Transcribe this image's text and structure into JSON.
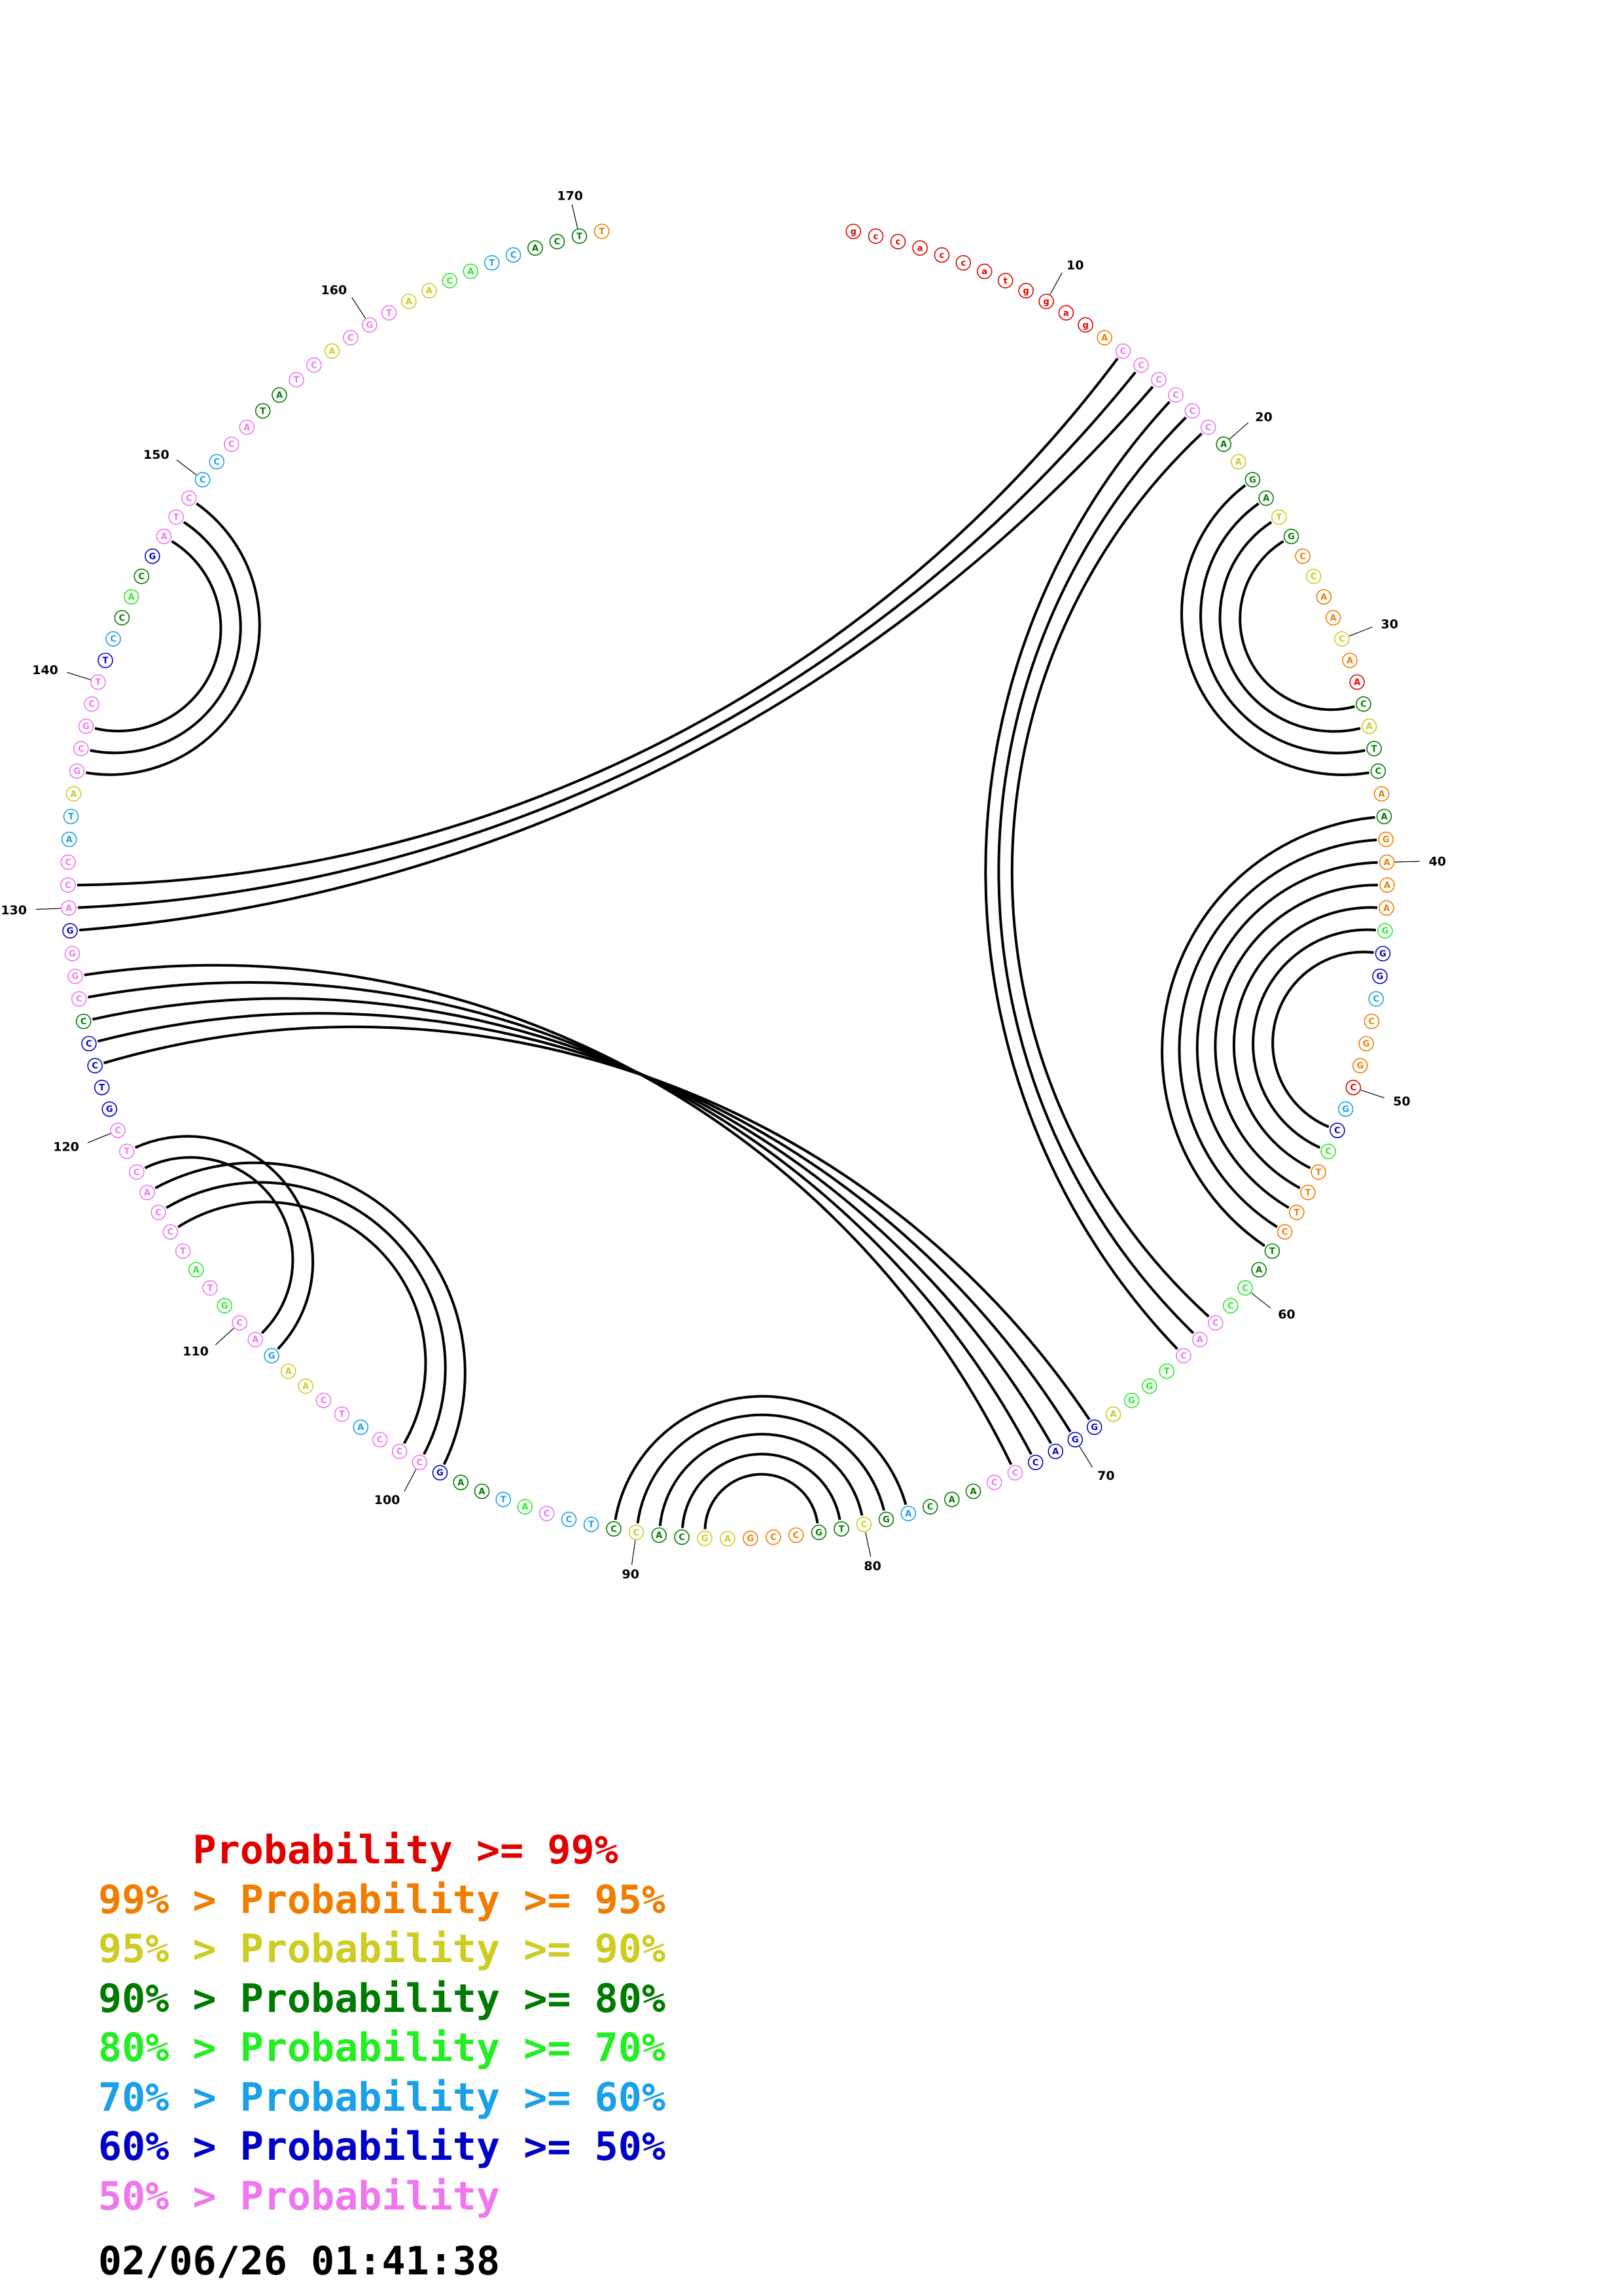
{
  "diagram": {
    "sequence": [
      {
        "b": "g",
        "c": "red"
      },
      {
        "b": "c",
        "c": "red"
      },
      {
        "b": "c",
        "c": "red"
      },
      {
        "b": "a",
        "c": "red"
      },
      {
        "b": "c",
        "c": "red"
      },
      {
        "b": "c",
        "c": "red"
      },
      {
        "b": "a",
        "c": "red"
      },
      {
        "b": "t",
        "c": "red"
      },
      {
        "b": "g",
        "c": "red"
      },
      {
        "b": "g",
        "c": "red"
      },
      {
        "b": "a",
        "c": "red"
      },
      {
        "b": "g",
        "c": "red"
      },
      {
        "b": "A",
        "c": "orange"
      },
      {
        "b": "C",
        "c": "pink"
      },
      {
        "b": "C",
        "c": "pink"
      },
      {
        "b": "C",
        "c": "pink"
      },
      {
        "b": "C",
        "c": "pink"
      },
      {
        "b": "C",
        "c": "pink"
      },
      {
        "b": "C",
        "c": "pink"
      },
      {
        "b": "A",
        "c": "darkgreen"
      },
      {
        "b": "A",
        "c": "yellow"
      },
      {
        "b": "G",
        "c": "darkgreen"
      },
      {
        "b": "A",
        "c": "darkgreen"
      },
      {
        "b": "T",
        "c": "yellow"
      },
      {
        "b": "G",
        "c": "darkgreen"
      },
      {
        "b": "C",
        "c": "orange"
      },
      {
        "b": "C",
        "c": "yellow"
      },
      {
        "b": "A",
        "c": "orange"
      },
      {
        "b": "A",
        "c": "orange"
      },
      {
        "b": "C",
        "c": "yellow"
      },
      {
        "b": "A",
        "c": "orange"
      },
      {
        "b": "A",
        "c": "red"
      },
      {
        "b": "C",
        "c": "darkgreen"
      },
      {
        "b": "A",
        "c": "yellow"
      },
      {
        "b": "T",
        "c": "darkgreen"
      },
      {
        "b": "C",
        "c": "darkgreen"
      },
      {
        "b": "A",
        "c": "orange"
      },
      {
        "b": "A",
        "c": "darkgreen"
      },
      {
        "b": "G",
        "c": "orange"
      },
      {
        "b": "A",
        "c": "orange"
      },
      {
        "b": "A",
        "c": "orange"
      },
      {
        "b": "A",
        "c": "orange"
      },
      {
        "b": "G",
        "c": "green"
      },
      {
        "b": "G",
        "c": "blue"
      },
      {
        "b": "G",
        "c": "blue"
      },
      {
        "b": "C",
        "c": "cyan"
      },
      {
        "b": "C",
        "c": "orange"
      },
      {
        "b": "G",
        "c": "orange"
      },
      {
        "b": "G",
        "c": "orange"
      },
      {
        "b": "C",
        "c": "red"
      },
      {
        "b": "G",
        "c": "cyan"
      },
      {
        "b": "C",
        "c": "blue"
      },
      {
        "b": "C",
        "c": "green"
      },
      {
        "b": "T",
        "c": "orange"
      },
      {
        "b": "T",
        "c": "orange"
      },
      {
        "b": "T",
        "c": "orange"
      },
      {
        "b": "C",
        "c": "orange"
      },
      {
        "b": "T",
        "c": "darkgreen"
      },
      {
        "b": "A",
        "c": "darkgreen"
      },
      {
        "b": "C",
        "c": "green"
      },
      {
        "b": "C",
        "c": "green"
      },
      {
        "b": "C",
        "c": "pink"
      },
      {
        "b": "A",
        "c": "pink"
      },
      {
        "b": "C",
        "c": "pink"
      },
      {
        "b": "T",
        "c": "green"
      },
      {
        "b": "G",
        "c": "green"
      },
      {
        "b": "G",
        "c": "green"
      },
      {
        "b": "A",
        "c": "yellow"
      },
      {
        "b": "G",
        "c": "blue"
      },
      {
        "b": "G",
        "c": "blue"
      },
      {
        "b": "A",
        "c": "blue"
      },
      {
        "b": "C",
        "c": "blue"
      },
      {
        "b": "C",
        "c": "pink"
      },
      {
        "b": "C",
        "c": "pink"
      },
      {
        "b": "A",
        "c": "darkgreen"
      },
      {
        "b": "A",
        "c": "darkgreen"
      },
      {
        "b": "C",
        "c": "darkgreen"
      },
      {
        "b": "A",
        "c": "cyan"
      },
      {
        "b": "G",
        "c": "darkgreen"
      },
      {
        "b": "C",
        "c": "yellow"
      },
      {
        "b": "T",
        "c": "darkgreen"
      },
      {
        "b": "G",
        "c": "darkgreen"
      },
      {
        "b": "C",
        "c": "orange"
      },
      {
        "b": "C",
        "c": "orange"
      },
      {
        "b": "G",
        "c": "orange"
      },
      {
        "b": "A",
        "c": "yellow"
      },
      {
        "b": "G",
        "c": "yellow"
      },
      {
        "b": "C",
        "c": "darkgreen"
      },
      {
        "b": "A",
        "c": "darkgreen"
      },
      {
        "b": "C",
        "c": "yellow"
      },
      {
        "b": "C",
        "c": "darkgreen"
      },
      {
        "b": "T",
        "c": "cyan"
      },
      {
        "b": "C",
        "c": "cyan"
      },
      {
        "b": "C",
        "c": "pink"
      },
      {
        "b": "A",
        "c": "green"
      },
      {
        "b": "T",
        "c": "cyan"
      },
      {
        "b": "A",
        "c": "darkgreen"
      },
      {
        "b": "A",
        "c": "darkgreen"
      },
      {
        "b": "G",
        "c": "blue"
      },
      {
        "b": "C",
        "c": "pink"
      },
      {
        "b": "C",
        "c": "pink"
      },
      {
        "b": "C",
        "c": "pink"
      },
      {
        "b": "A",
        "c": "cyan"
      },
      {
        "b": "T",
        "c": "pink"
      },
      {
        "b": "C",
        "c": "pink"
      },
      {
        "b": "A",
        "c": "yellow"
      },
      {
        "b": "A",
        "c": "yellow"
      },
      {
        "b": "G",
        "c": "cyan"
      },
      {
        "b": "A",
        "c": "pink"
      },
      {
        "b": "C",
        "c": "pink"
      },
      {
        "b": "G",
        "c": "green"
      },
      {
        "b": "T",
        "c": "pink"
      },
      {
        "b": "A",
        "c": "green"
      },
      {
        "b": "T",
        "c": "pink"
      },
      {
        "b": "C",
        "c": "pink"
      },
      {
        "b": "C",
        "c": "pink"
      },
      {
        "b": "A",
        "c": "pink"
      },
      {
        "b": "C",
        "c": "pink"
      },
      {
        "b": "T",
        "c": "pink"
      },
      {
        "b": "C",
        "c": "pink"
      },
      {
        "b": "G",
        "c": "blue"
      },
      {
        "b": "T",
        "c": "blue"
      },
      {
        "b": "C",
        "c": "blue"
      },
      {
        "b": "C",
        "c": "blue"
      },
      {
        "b": "C",
        "c": "darkgreen"
      },
      {
        "b": "C",
        "c": "pink"
      },
      {
        "b": "G",
        "c": "pink"
      },
      {
        "b": "G",
        "c": "pink"
      },
      {
        "b": "G",
        "c": "blue"
      },
      {
        "b": "A",
        "c": "pink"
      },
      {
        "b": "C",
        "c": "pink"
      },
      {
        "b": "C",
        "c": "pink"
      },
      {
        "b": "A",
        "c": "cyan"
      },
      {
        "b": "T",
        "c": "cyan"
      },
      {
        "b": "A",
        "c": "yellow"
      },
      {
        "b": "G",
        "c": "pink"
      },
      {
        "b": "C",
        "c": "pink"
      },
      {
        "b": "G",
        "c": "pink"
      },
      {
        "b": "C",
        "c": "pink"
      },
      {
        "b": "T",
        "c": "pink"
      },
      {
        "b": "T",
        "c": "blue"
      },
      {
        "b": "C",
        "c": "cyan"
      },
      {
        "b": "C",
        "c": "darkgreen"
      },
      {
        "b": "A",
        "c": "green"
      },
      {
        "b": "C",
        "c": "darkgreen"
      },
      {
        "b": "G",
        "c": "blue"
      },
      {
        "b": "A",
        "c": "pink"
      },
      {
        "b": "T",
        "c": "pink"
      },
      {
        "b": "C",
        "c": "pink"
      },
      {
        "b": "C",
        "c": "cyan"
      },
      {
        "b": "C",
        "c": "cyan"
      },
      {
        "b": "C",
        "c": "pink"
      },
      {
        "b": "A",
        "c": "pink"
      },
      {
        "b": "T",
        "c": "darkgreen"
      },
      {
        "b": "A",
        "c": "darkgreen"
      },
      {
        "b": "T",
        "c": "pink"
      },
      {
        "b": "C",
        "c": "pink"
      },
      {
        "b": "A",
        "c": "yellow"
      },
      {
        "b": "C",
        "c": "pink"
      },
      {
        "b": "G",
        "c": "pink"
      },
      {
        "b": "T",
        "c": "pink"
      },
      {
        "b": "A",
        "c": "yellow"
      },
      {
        "b": "A",
        "c": "yellow"
      },
      {
        "b": "C",
        "c": "green"
      },
      {
        "b": "A",
        "c": "green"
      },
      {
        "b": "T",
        "c": "cyan"
      },
      {
        "b": "C",
        "c": "cyan"
      },
      {
        "b": "A",
        "c": "darkgreen"
      },
      {
        "b": "C",
        "c": "darkgreen"
      },
      {
        "b": "T",
        "c": "darkgreen"
      },
      {
        "b": "T",
        "c": "orange"
      }
    ],
    "position_labels": [
      {
        "pos": 10,
        "text": "10"
      },
      {
        "pos": 20,
        "text": "20"
      },
      {
        "pos": 30,
        "text": "30"
      },
      {
        "pos": 40,
        "text": "40"
      },
      {
        "pos": 50,
        "text": "50"
      },
      {
        "pos": 60,
        "text": "60"
      },
      {
        "pos": 70,
        "text": "70"
      },
      {
        "pos": 80,
        "text": "80"
      },
      {
        "pos": 90,
        "text": "90"
      },
      {
        "pos": 100,
        "text": "100"
      },
      {
        "pos": 110,
        "text": "110"
      },
      {
        "pos": 120,
        "text": "120"
      },
      {
        "pos": 130,
        "text": "130"
      },
      {
        "pos": 140,
        "text": "140"
      },
      {
        "pos": 150,
        "text": "150"
      },
      {
        "pos": 160,
        "text": "160"
      },
      {
        "pos": 170,
        "text": "170"
      }
    ],
    "pairs": [
      [
        14,
        131
      ],
      [
        15,
        130
      ],
      [
        16,
        129
      ],
      [
        17,
        64
      ],
      [
        18,
        63
      ],
      [
        19,
        62
      ],
      [
        22,
        36
      ],
      [
        23,
        35
      ],
      [
        24,
        34
      ],
      [
        25,
        33
      ],
      [
        38,
        58
      ],
      [
        39,
        57
      ],
      [
        40,
        56
      ],
      [
        41,
        55
      ],
      [
        42,
        54
      ],
      [
        43,
        53
      ],
      [
        44,
        52
      ],
      [
        69,
        123
      ],
      [
        70,
        124
      ],
      [
        71,
        125
      ],
      [
        72,
        126
      ],
      [
        73,
        127
      ],
      [
        78,
        91
      ],
      [
        79,
        90
      ],
      [
        80,
        89
      ],
      [
        81,
        88
      ],
      [
        82,
        87
      ],
      [
        99,
        117
      ],
      [
        100,
        116
      ],
      [
        101,
        115
      ],
      [
        108,
        119
      ],
      [
        109,
        118
      ],
      [
        136,
        149
      ],
      [
        137,
        148
      ],
      [
        138,
        147
      ]
    ]
  },
  "legend": {
    "rows": [
      {
        "text": "    Probability >= 99%",
        "color": "#e00000"
      },
      {
        "text": "99% > Probability >= 95%",
        "color": "#f07c00"
      },
      {
        "text": "95% > Probability >= 90%",
        "color": "#cccc22"
      },
      {
        "text": "90% > Probability >= 80%",
        "color": "#007a00"
      },
      {
        "text": "80% > Probability >= 70%",
        "color": "#22ee22"
      },
      {
        "text": "70% > Probability >= 60%",
        "color": "#1aa0e8"
      },
      {
        "text": "60% > Probability >= 50%",
        "color": "#0000c8"
      },
      {
        "text": "50% > Probability",
        "color": "#ee77ee"
      }
    ]
  },
  "timestamp": "02/06/26 01:41:38",
  "colors": {
    "red": "#e00000",
    "orange": "#f07c00",
    "yellow": "#cccc22",
    "darkgreen": "#007a00",
    "green": "#22ee22",
    "cyan": "#1aa0e8",
    "blue": "#0000c8",
    "pink": "#ee77ee"
  }
}
